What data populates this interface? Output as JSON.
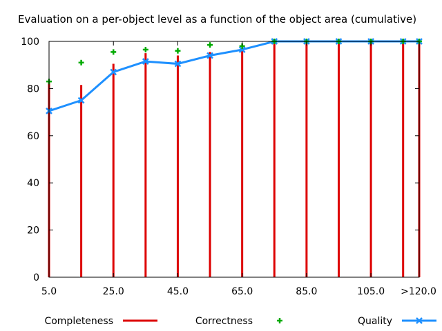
{
  "chart_data": {
    "type": "bar",
    "title": "Evaluation on a per-object level as a function of the object area (cumulative)",
    "xlabel": "",
    "ylabel": "",
    "x": [
      5,
      15,
      25,
      35,
      45,
      55,
      65,
      75,
      85,
      95,
      105,
      115,
      120
    ],
    "xtick_values": [
      5,
      25,
      45,
      65,
      85,
      105,
      120
    ],
    "xtick_labels": [
      "5.0",
      "25.0",
      "45.0",
      "65.0",
      "85.0",
      "105.0",
      ">120.0"
    ],
    "xlim": [
      5,
      120
    ],
    "ylim": [
      0,
      100
    ],
    "ytick_labels": [
      "0",
      "20",
      "40",
      "60",
      "80",
      "100"
    ],
    "grid": false,
    "legend_position": "bottom",
    "series": [
      {
        "name": "Completeness",
        "type": "impulse",
        "color": "#dd0000",
        "values": [
          83,
          81.5,
          90.5,
          95,
          94,
          95.5,
          96.5,
          100,
          100,
          100,
          100,
          100,
          100
        ]
      },
      {
        "name": "Correctness",
        "type": "scatter",
        "marker": "plus",
        "color": "#00aa00",
        "values": [
          83,
          91,
          95.5,
          96.5,
          96,
          98.5,
          98,
          100,
          100,
          100,
          100,
          100,
          100
        ]
      },
      {
        "name": "Quality",
        "type": "linepoints",
        "marker": "cross",
        "color": "#1e90ff",
        "values": [
          70.5,
          75,
          87,
          91.5,
          90.5,
          94,
          96.5,
          100,
          100,
          100,
          100,
          100,
          100
        ]
      }
    ]
  }
}
